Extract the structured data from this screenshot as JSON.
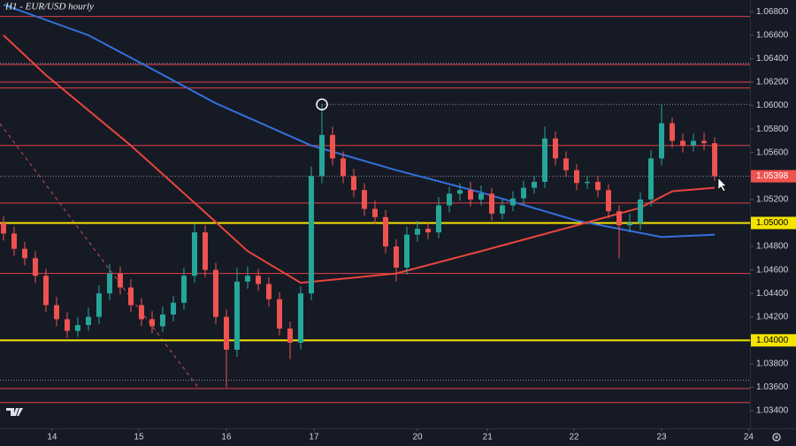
{
  "chart_data": {
    "type": "candlestick",
    "title": "H1 - EUR/USD hourly",
    "up_color": "#26a69a",
    "down_color": "#ef5350",
    "open": [
      1.05,
      1.0491,
      1.0478,
      1.047,
      1.0455,
      1.043,
      1.0418,
      1.0408,
      1.0413,
      1.042,
      1.044,
      1.0457,
      1.0445,
      1.043,
      1.0418,
      1.0412,
      1.0422,
      1.0432,
      1.0455,
      1.0492,
      1.046,
      1.042,
      1.0392,
      1.045,
      1.0455,
      1.0448,
      1.0435,
      1.041,
      1.0398,
      1.044,
      1.054,
      1.0575,
      1.0555,
      1.054,
      1.0528,
      1.0512,
      1.0505,
      1.048,
      1.0462,
      1.049,
      1.0495,
      1.0492,
      1.0515,
      1.0525,
      1.0528,
      1.052,
      1.0525,
      1.0508,
      1.0515,
      1.0521,
      1.053,
      1.0535,
      1.0572,
      1.0555,
      1.0545,
      1.0534,
      1.0535,
      1.0528,
      1.051,
      1.0498,
      1.05,
      1.052,
      1.0555,
      1.0585,
      1.057,
      1.0566,
      1.057,
      1.0568
    ],
    "high": [
      1.0506,
      1.0497,
      1.0484,
      1.0476,
      1.0461,
      1.0437,
      1.0424,
      1.042,
      1.0428,
      1.0447,
      1.0465,
      1.0463,
      1.0452,
      1.0436,
      1.0425,
      1.0429,
      1.0438,
      1.0462,
      1.05,
      1.0498,
      1.0466,
      1.0426,
      1.0462,
      1.0463,
      1.0461,
      1.0454,
      1.0441,
      1.0416,
      1.0446,
      1.0548,
      1.0601,
      1.0582,
      1.0561,
      1.0546,
      1.0534,
      1.0519,
      1.0511,
      1.0486,
      1.0497,
      1.0502,
      1.0501,
      1.0522,
      1.0531,
      1.0534,
      1.0535,
      1.0532,
      1.053,
      1.052,
      1.0527,
      1.0536,
      1.054,
      1.0582,
      1.0578,
      1.0561,
      1.055,
      1.054,
      1.054,
      1.0533,
      1.0515,
      1.0508,
      1.0526,
      1.0562,
      1.0601,
      1.059,
      1.0576,
      1.0576,
      1.0577,
      1.0573
    ],
    "low": [
      1.0485,
      1.0472,
      1.0464,
      1.0449,
      1.0424,
      1.0412,
      1.0402,
      1.0403,
      1.0408,
      1.0414,
      1.0434,
      1.0439,
      1.0424,
      1.0412,
      1.0406,
      1.0407,
      1.0416,
      1.0426,
      1.0449,
      1.0454,
      1.0414,
      1.036,
      1.0386,
      1.0444,
      1.0442,
      1.0429,
      1.0404,
      1.0384,
      1.0392,
      1.0434,
      1.0534,
      1.0549,
      1.0534,
      1.0522,
      1.0506,
      1.0499,
      1.0474,
      1.045,
      1.0456,
      1.0484,
      1.0486,
      1.0487,
      1.0509,
      1.0519,
      1.0514,
      1.0515,
      1.0502,
      1.0503,
      1.051,
      1.0516,
      1.0525,
      1.053,
      1.0549,
      1.0539,
      1.0528,
      1.0529,
      1.0522,
      1.0504,
      1.047,
      1.0492,
      1.0494,
      1.0514,
      1.0549,
      1.0564,
      1.056,
      1.0561,
      1.0562,
      1.0536
    ],
    "close": [
      1.0491,
      1.0478,
      1.047,
      1.0455,
      1.043,
      1.0418,
      1.0408,
      1.0413,
      1.042,
      1.044,
      1.0457,
      1.0445,
      1.043,
      1.0418,
      1.0412,
      1.0422,
      1.0432,
      1.0455,
      1.0492,
      1.046,
      1.042,
      1.0392,
      1.045,
      1.0455,
      1.0448,
      1.0435,
      1.041,
      1.0398,
      1.044,
      1.054,
      1.0575,
      1.0555,
      1.054,
      1.0528,
      1.0512,
      1.0505,
      1.048,
      1.0462,
      1.049,
      1.0495,
      1.0492,
      1.0515,
      1.0525,
      1.0528,
      1.052,
      1.0525,
      1.0508,
      1.0515,
      1.0521,
      1.053,
      1.0535,
      1.0572,
      1.0555,
      1.0545,
      1.0534,
      1.0535,
      1.0528,
      1.051,
      1.0498,
      1.05,
      1.052,
      1.0555,
      1.0585,
      1.057,
      1.0566,
      1.057,
      1.0568,
      1.05398
    ],
    "series": [
      {
        "color": "#3370dc",
        "x": [
          0,
          8,
          13,
          20,
          29,
          37,
          45,
          54,
          62,
          67
        ],
        "values": [
          1.0686,
          1.066,
          1.0636,
          1.0602,
          1.0566,
          1.0545,
          1.0526,
          1.0502,
          1.0488,
          1.049
        ]
      },
      {
        "color": "#e8453c",
        "x": [
          0,
          4,
          12,
          19,
          23,
          28,
          37,
          45,
          54,
          60,
          63,
          67
        ],
        "values": [
          1.066,
          1.0626,
          1.0566,
          1.0509,
          1.0476,
          1.0449,
          1.0457,
          1.0476,
          1.0498,
          1.0513,
          1.0527,
          1.053
        ]
      }
    ],
    "levels": [
      1.0676,
      1.0635,
      1.062,
      1.0615,
      1.0566,
      1.0517,
      1.0457,
      1.0359,
      1.0347
    ],
    "level_color": "#e0404a",
    "dotted_levels": [
      1.0636,
      1.0366
    ],
    "key_levels": [
      {
        "value": 1.05,
        "label": "1.05000"
      },
      {
        "value": 1.04,
        "label": "1.04000"
      }
    ],
    "key_color": "#f5e400",
    "last_price": 1.05398,
    "xlim": [
      -0.33,
      70.33
    ],
    "ylim": [
      1.0325,
      1.069
    ],
    "xticks": [
      {
        "value": 4.58,
        "label": "14"
      },
      {
        "value": 12.75,
        "label": "15"
      },
      {
        "value": 21,
        "label": "16"
      },
      {
        "value": 29.25,
        "label": "17"
      },
      {
        "value": 39,
        "label": "20"
      },
      {
        "value": 45.6,
        "label": "21"
      },
      {
        "value": 53.75,
        "label": "22"
      },
      {
        "value": 62,
        "label": "23"
      },
      {
        "value": 70.2,
        "label": "24"
      }
    ],
    "yticks": [
      {
        "value": 1.034,
        "label": "1.03400"
      },
      {
        "value": 1.036,
        "label": "1.03600"
      },
      {
        "value": 1.038,
        "label": "1.03800"
      },
      {
        "value": 1.04,
        "label": "1.04000"
      },
      {
        "value": 1.042,
        "label": "1.04200"
      },
      {
        "value": 1.044,
        "label": "1.04400"
      },
      {
        "value": 1.046,
        "label": "1.04600"
      },
      {
        "value": 1.048,
        "label": "1.04800"
      },
      {
        "value": 1.05,
        "label": "1.05000"
      },
      {
        "value": 1.052,
        "label": "1.05200"
      },
      {
        "value": 1.054,
        "label": "1.05400"
      },
      {
        "value": 1.056,
        "label": "1.05600"
      },
      {
        "value": 1.058,
        "label": "1.05800"
      },
      {
        "value": 1.06,
        "label": "1.06000"
      },
      {
        "value": 1.062,
        "label": "1.06200"
      },
      {
        "value": 1.064,
        "label": "1.06400"
      },
      {
        "value": 1.066,
        "label": "1.06600"
      },
      {
        "value": 1.068,
        "label": "1.06800"
      }
    ]
  }
}
